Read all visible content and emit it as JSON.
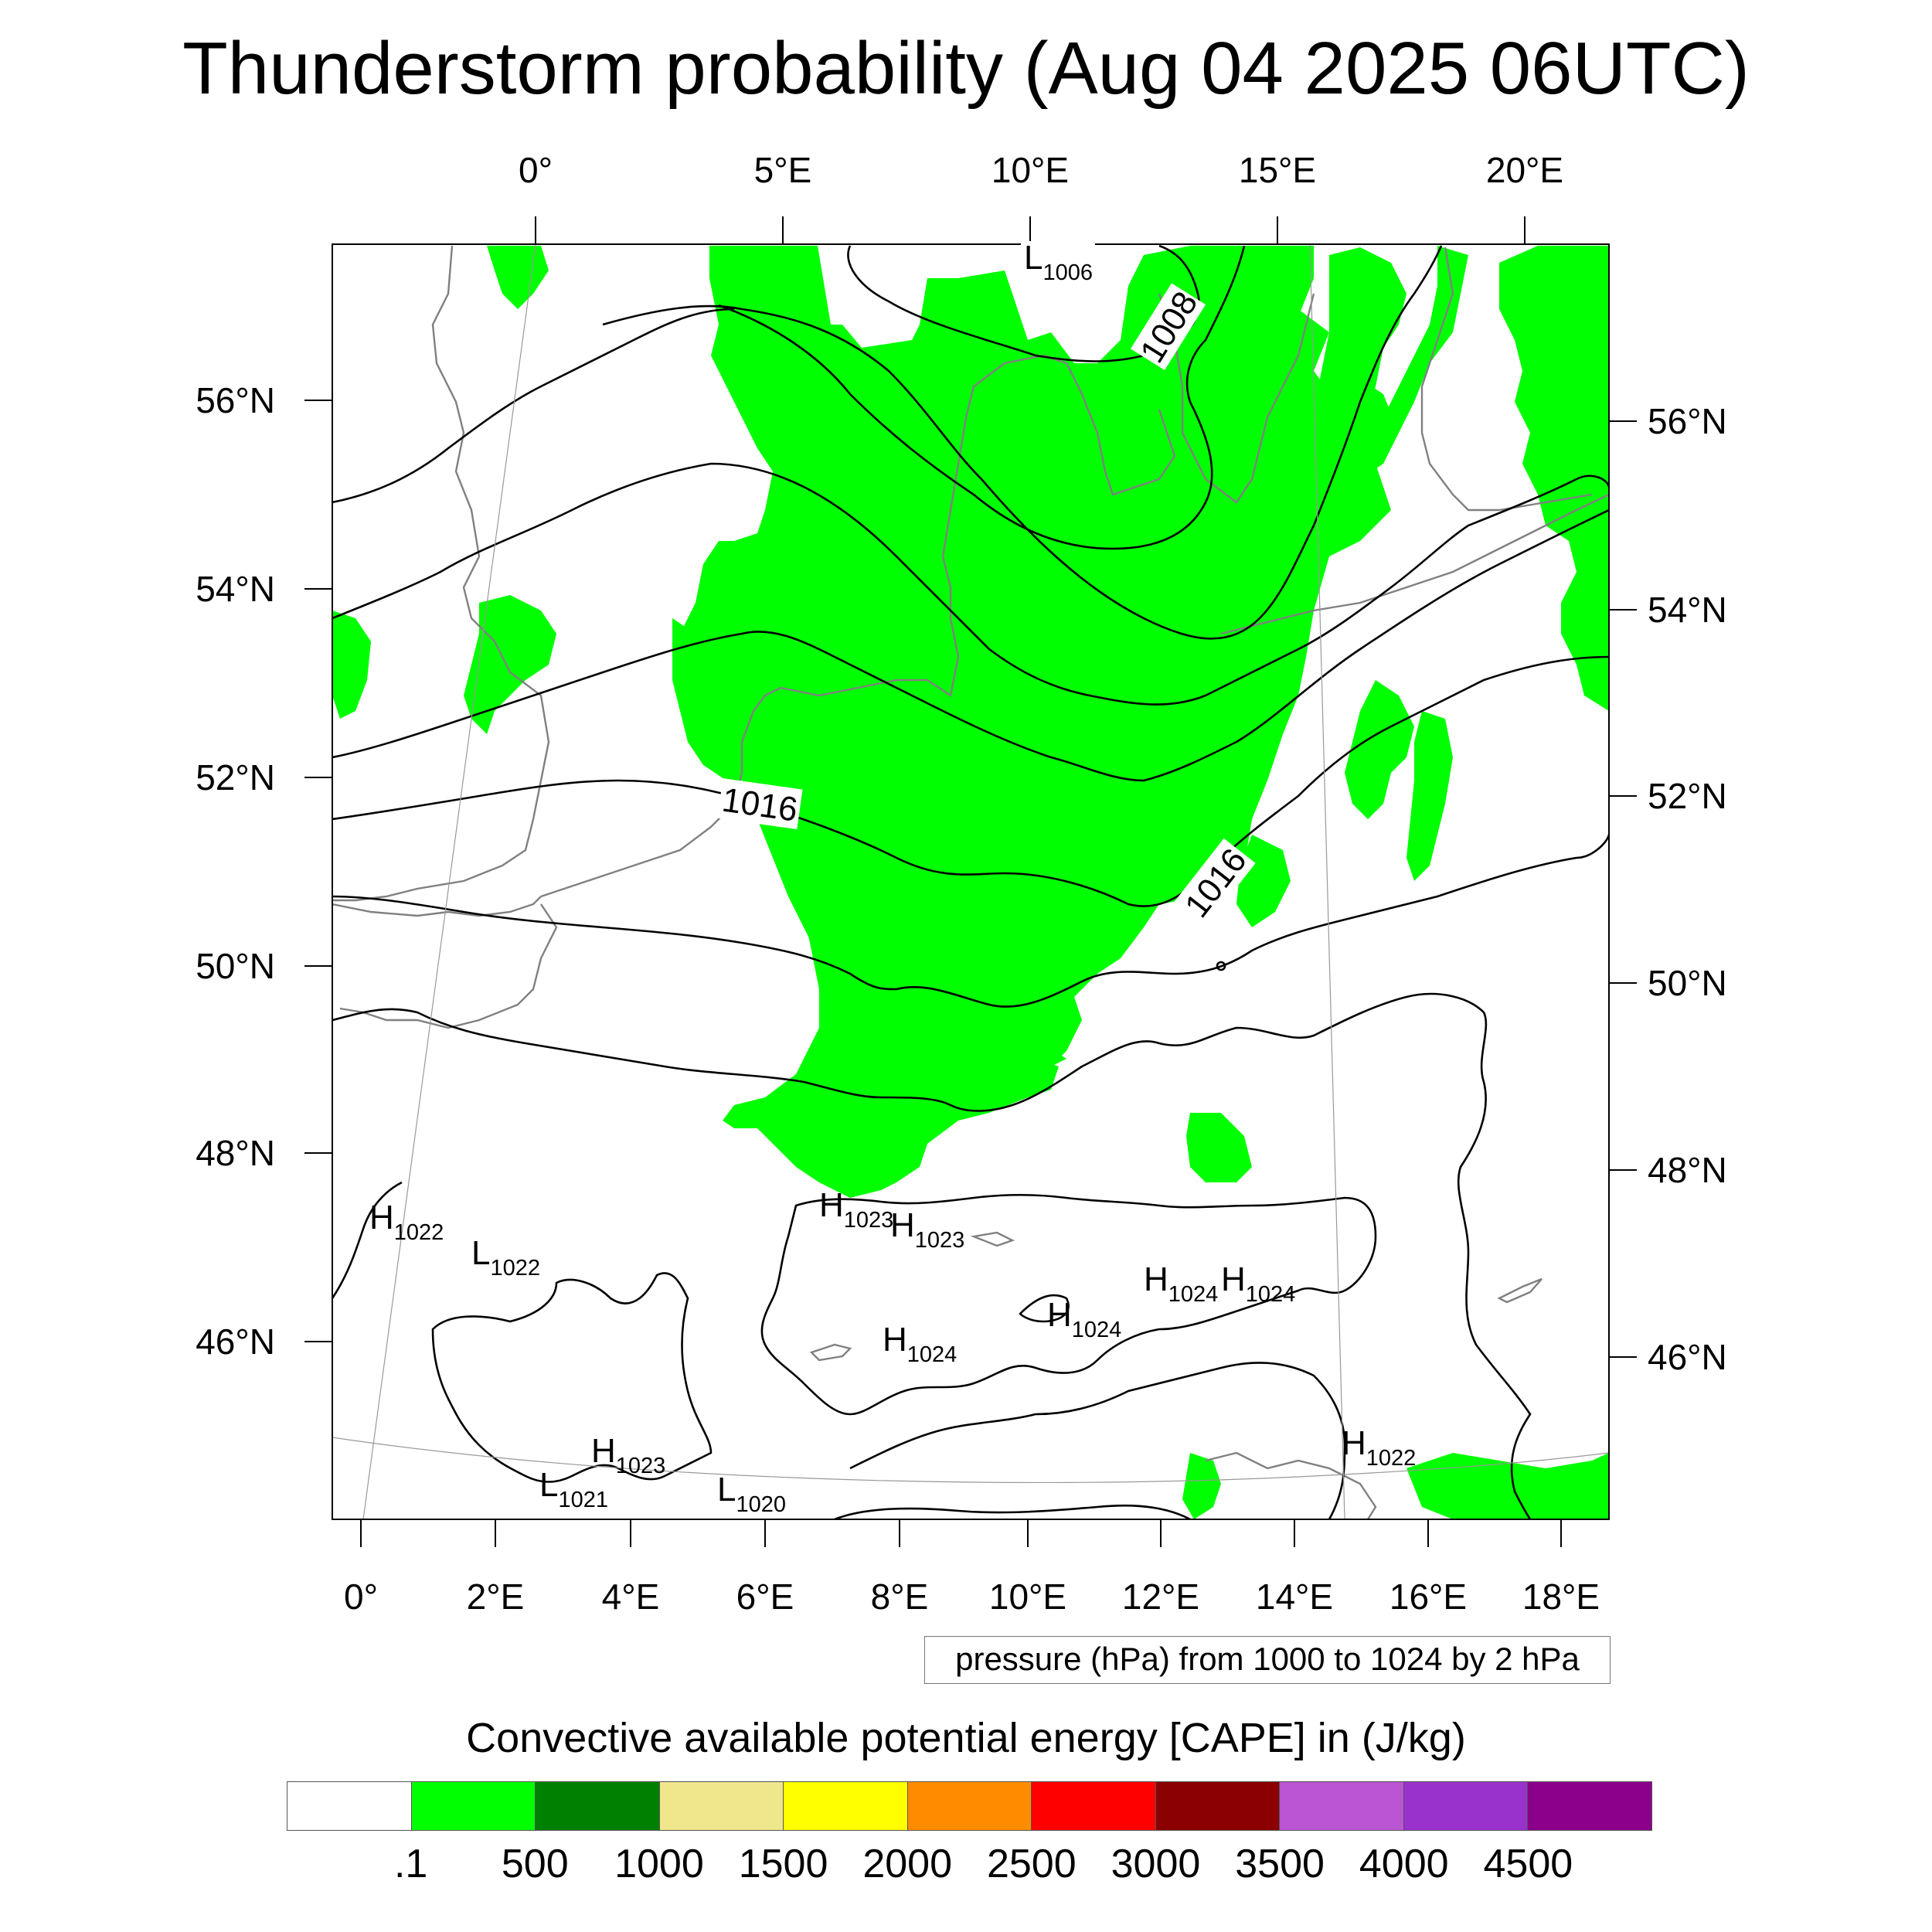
{
  "title": "Thunderstorm probability (Aug 04 2025 06UTC)",
  "axes": {
    "top_lon_labels": [
      "0°",
      "5°E",
      "10°E",
      "15°E",
      "20°E"
    ],
    "bottom_lon_labels": [
      "0°",
      "2°E",
      "4°E",
      "6°E",
      "8°E",
      "10°E",
      "12°E",
      "14°E",
      "16°E",
      "18°E"
    ],
    "left_lat_labels": [
      "56°N",
      "54°N",
      "52°N",
      "50°N",
      "48°N",
      "46°N"
    ],
    "right_lat_labels": [
      "56°N",
      "54°N",
      "52°N",
      "50°N",
      "48°N",
      "46°N"
    ]
  },
  "isobar_labels": [
    "1008",
    "1016",
    "1016"
  ],
  "pressure_centers": [
    {
      "type": "L",
      "value": "1006"
    },
    {
      "type": "H",
      "value": "1022"
    },
    {
      "type": "L",
      "value": "1022"
    },
    {
      "type": "H",
      "value": "1023"
    },
    {
      "type": "H",
      "value": "1023"
    },
    {
      "type": "H",
      "value": "1024"
    },
    {
      "type": "H",
      "value": "1024"
    },
    {
      "type": "H",
      "value": "1024"
    },
    {
      "type": "H",
      "value": "1024"
    },
    {
      "type": "H",
      "value": "1023"
    },
    {
      "type": "L",
      "value": "1021"
    },
    {
      "type": "L",
      "value": "1020"
    },
    {
      "type": "H",
      "value": "1022"
    }
  ],
  "pressure_note": "pressure (hPa) from 1000 to 1024 by 2 hPa",
  "legend": {
    "title": "Convective available potential energy [CAPE] in (J/kg)",
    "colors": [
      "#ffffff",
      "#00ff00",
      "#008000",
      "#f0e68c",
      "#ffff00",
      "#ff8c00",
      "#ff0000",
      "#8b0000",
      "#ba55d3",
      "#9932cc",
      "#8b008b"
    ],
    "labels": [
      ".1",
      "500",
      "1000",
      "1500",
      "2000",
      "2500",
      "3000",
      "3500",
      "4000",
      "4500"
    ]
  },
  "colors": {
    "cape_fill": "#00ff00",
    "coastline": "#808080",
    "isobar": "#000000"
  }
}
